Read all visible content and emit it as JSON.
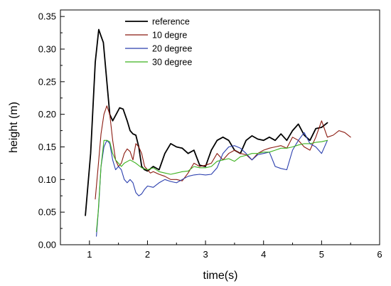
{
  "chart_data": {
    "type": "line",
    "xlabel": "time(s)",
    "ylabel": "height (m)",
    "xlim": [
      0.5,
      6
    ],
    "ylim": [
      0,
      0.36
    ],
    "xticks": [
      1,
      2,
      3,
      4,
      5,
      6
    ],
    "yticks": [
      "0.00",
      "0.05",
      "0.10",
      "0.15",
      "0.20",
      "0.25",
      "0.30",
      "0.35"
    ],
    "legend_position": "top-center",
    "grid": false,
    "series": [
      {
        "name": "reference",
        "color": "#000000",
        "x": [
          0.93,
          1.02,
          1.1,
          1.16,
          1.2,
          1.24,
          1.3,
          1.35,
          1.4,
          1.46,
          1.52,
          1.58,
          1.65,
          1.7,
          1.75,
          1.8,
          1.85,
          1.9,
          1.95,
          2.0,
          2.1,
          2.2,
          2.3,
          2.4,
          2.5,
          2.6,
          2.7,
          2.8,
          2.9,
          3.0,
          3.1,
          3.2,
          3.3,
          3.4,
          3.5,
          3.6,
          3.7,
          3.8,
          3.9,
          4.0,
          4.1,
          4.2,
          4.3,
          4.4,
          4.5,
          4.6,
          4.7,
          4.8,
          4.9,
          5.0,
          5.1
        ],
        "y": [
          0.045,
          0.14,
          0.28,
          0.33,
          0.32,
          0.31,
          0.25,
          0.2,
          0.19,
          0.2,
          0.21,
          0.208,
          0.19,
          0.175,
          0.17,
          0.168,
          0.15,
          0.12,
          0.115,
          0.113,
          0.12,
          0.115,
          0.14,
          0.155,
          0.15,
          0.148,
          0.14,
          0.145,
          0.122,
          0.12,
          0.145,
          0.16,
          0.165,
          0.16,
          0.145,
          0.14,
          0.16,
          0.167,
          0.162,
          0.16,
          0.165,
          0.16,
          0.17,
          0.16,
          0.175,
          0.185,
          0.168,
          0.16,
          0.178,
          0.18,
          0.187
        ]
      },
      {
        "name": "10 degre",
        "color": "#8b1a10",
        "x": [
          1.1,
          1.15,
          1.2,
          1.25,
          1.3,
          1.35,
          1.4,
          1.45,
          1.5,
          1.55,
          1.6,
          1.65,
          1.7,
          1.75,
          1.8,
          1.85,
          1.9,
          1.95,
          2.0,
          2.05,
          2.1,
          2.2,
          2.3,
          2.4,
          2.5,
          2.6,
          2.7,
          2.8,
          2.9,
          3.0,
          3.1,
          3.2,
          3.3,
          3.4,
          3.5,
          3.6,
          3.7,
          3.8,
          3.9,
          4.0,
          4.1,
          4.2,
          4.3,
          4.4,
          4.5,
          4.6,
          4.7,
          4.8,
          4.9,
          5.0,
          5.1,
          5.2,
          5.3,
          5.4,
          5.5
        ],
        "y": [
          0.07,
          0.12,
          0.17,
          0.2,
          0.213,
          0.2,
          0.16,
          0.13,
          0.12,
          0.125,
          0.14,
          0.147,
          0.143,
          0.13,
          0.155,
          0.15,
          0.14,
          0.12,
          0.115,
          0.11,
          0.112,
          0.108,
          0.105,
          0.1,
          0.1,
          0.098,
          0.11,
          0.125,
          0.12,
          0.122,
          0.125,
          0.14,
          0.13,
          0.14,
          0.145,
          0.14,
          0.138,
          0.13,
          0.14,
          0.145,
          0.148,
          0.15,
          0.152,
          0.148,
          0.165,
          0.16,
          0.15,
          0.145,
          0.165,
          0.19,
          0.165,
          0.168,
          0.175,
          0.172,
          0.165
        ]
      },
      {
        "name": "20 degree",
        "color": "#2b3fae",
        "x": [
          1.12,
          1.16,
          1.2,
          1.25,
          1.3,
          1.35,
          1.4,
          1.45,
          1.5,
          1.55,
          1.6,
          1.65,
          1.7,
          1.75,
          1.8,
          1.85,
          1.9,
          1.95,
          2.0,
          2.1,
          2.2,
          2.3,
          2.4,
          2.5,
          2.6,
          2.7,
          2.8,
          2.9,
          3.0,
          3.1,
          3.2,
          3.3,
          3.4,
          3.5,
          3.6,
          3.7,
          3.8,
          3.9,
          4.0,
          4.1,
          4.2,
          4.3,
          4.4,
          4.5,
          4.6,
          4.7,
          4.8,
          4.9,
          5.0,
          5.1
        ],
        "y": [
          0.013,
          0.06,
          0.12,
          0.15,
          0.16,
          0.155,
          0.13,
          0.115,
          0.12,
          0.115,
          0.1,
          0.095,
          0.1,
          0.095,
          0.08,
          0.075,
          0.078,
          0.085,
          0.09,
          0.088,
          0.095,
          0.1,
          0.097,
          0.095,
          0.1,
          0.105,
          0.107,
          0.108,
          0.107,
          0.108,
          0.118,
          0.14,
          0.15,
          0.152,
          0.148,
          0.14,
          0.13,
          0.138,
          0.14,
          0.142,
          0.12,
          0.117,
          0.115,
          0.145,
          0.16,
          0.172,
          0.155,
          0.15,
          0.14,
          0.16
        ]
      },
      {
        "name": "30 degree",
        "color": "#3cb21e",
        "x": [
          1.12,
          1.15,
          1.2,
          1.25,
          1.3,
          1.35,
          1.4,
          1.45,
          1.5,
          1.55,
          1.6,
          1.7,
          1.8,
          1.9,
          2.0,
          2.1,
          2.2,
          2.3,
          2.4,
          2.5,
          2.6,
          2.7,
          2.8,
          2.9,
          3.0,
          3.1,
          3.2,
          3.3,
          3.4,
          3.5,
          3.6,
          3.7,
          3.8,
          3.9,
          4.0,
          4.1,
          4.2,
          4.3,
          4.4,
          4.5,
          4.6,
          4.7,
          4.8,
          4.9,
          5.0,
          5.1
        ],
        "y": [
          0.02,
          0.05,
          0.12,
          0.16,
          0.16,
          0.158,
          0.14,
          0.13,
          0.125,
          0.12,
          0.125,
          0.13,
          0.125,
          0.118,
          0.115,
          0.118,
          0.112,
          0.11,
          0.108,
          0.11,
          0.112,
          0.113,
          0.12,
          0.118,
          0.118,
          0.12,
          0.128,
          0.13,
          0.132,
          0.128,
          0.135,
          0.137,
          0.14,
          0.14,
          0.142,
          0.142,
          0.145,
          0.148,
          0.148,
          0.15,
          0.153,
          0.155,
          0.155,
          0.157,
          0.158,
          0.16
        ]
      }
    ]
  }
}
